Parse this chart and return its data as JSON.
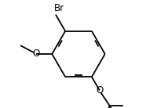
{
  "bg_color": "#ffffff",
  "line_color": "#000000",
  "line_width": 1.3,
  "font_size": 8.5,
  "figsize": [
    2.0,
    1.38
  ],
  "dpi": 100,
  "label_Br": "Br",
  "label_O": "O"
}
